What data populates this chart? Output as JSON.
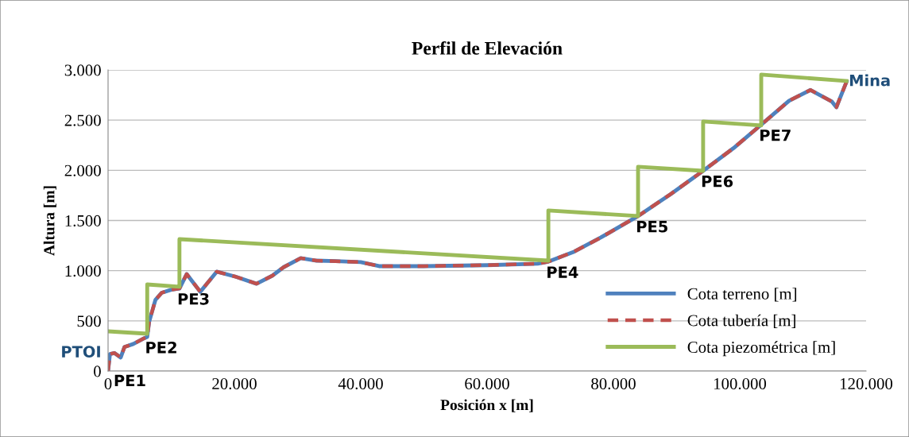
{
  "chart_data": {
    "type": "line",
    "title": "Perfil de Elevación",
    "xlabel": "Posición x [m]",
    "ylabel": "Altura [m]",
    "xlim": [
      0,
      120000
    ],
    "ylim": [
      0,
      3000
    ],
    "xticks": [
      0,
      {
        "value": 20000,
        "label": "20.000"
      },
      {
        "value": 40000,
        "label": "40.000"
      },
      {
        "value": 60000,
        "label": "60.000"
      },
      {
        "value": 80000,
        "label": "80.000"
      },
      {
        "value": 100000,
        "label": "100.000"
      },
      {
        "value": 120000,
        "label": "120.000"
      }
    ],
    "yticks": [
      0,
      500,
      {
        "value": 1000,
        "label": "1.000"
      },
      {
        "value": 1500,
        "label": "1.500"
      },
      {
        "value": 2000,
        "label": "2.000"
      },
      {
        "value": 2500,
        "label": "2.500"
      },
      {
        "value": 3000,
        "label": "3.000"
      }
    ],
    "grid": "y",
    "legend": "bottom right",
    "series": [
      {
        "name": "Cota terreno [m]",
        "color": "#4f81bd",
        "line_style": "solid",
        "x": [
          0,
          300,
          1000,
          2000,
          2600,
          4000,
          5500,
          6200,
          6500,
          7500,
          8500,
          10000,
          11300,
          12450,
          14600,
          17200,
          20200,
          23500,
          26000,
          27800,
          30500,
          33000,
          36000,
          40000,
          42900,
          50000,
          60000,
          68000,
          69700,
          73800,
          78000,
          83900,
          89000,
          94200,
          99000,
          103400,
          107800,
          111200,
          114600,
          115300,
          115800,
          116900
        ],
        "values": [
          0,
          170,
          180,
          135,
          240,
          270,
          320,
          340,
          490,
          710,
          780,
          810,
          823,
          966,
          790,
          990,
          940,
          870,
          950,
          1035,
          1125,
          1100,
          1095,
          1085,
          1045,
          1045,
          1055,
          1070,
          1090,
          1190,
          1330,
          1544,
          1760,
          1995,
          2220,
          2454,
          2692,
          2800,
          2684,
          2628,
          2708,
          2882
        ]
      },
      {
        "name": "Cota tubería [m]",
        "color": "#c0504d",
        "line_style": "dashed",
        "x": [
          0,
          300,
          1000,
          2000,
          2600,
          4000,
          5500,
          6200,
          6500,
          7500,
          8500,
          10000,
          11300,
          12450,
          14600,
          17200,
          20200,
          23500,
          26000,
          27800,
          30500,
          33000,
          36000,
          40000,
          42900,
          50000,
          60000,
          68000,
          69700,
          73800,
          78000,
          83900,
          89000,
          94200,
          99000,
          103400,
          107800,
          111200,
          114600,
          115300,
          115800,
          116900
        ],
        "values": [
          0,
          170,
          180,
          135,
          240,
          270,
          320,
          340,
          490,
          710,
          780,
          810,
          823,
          966,
          790,
          990,
          940,
          870,
          950,
          1035,
          1125,
          1100,
          1095,
          1085,
          1045,
          1045,
          1055,
          1070,
          1090,
          1190,
          1330,
          1544,
          1760,
          1995,
          2220,
          2454,
          2692,
          2800,
          2684,
          2628,
          2708,
          2882
        ]
      },
      {
        "name": "Cota piezométrica [m]",
        "color": "#9bbb59",
        "line_style": "solid",
        "x": [
          0,
          6200,
          6200,
          11300,
          11300,
          69700,
          69700,
          83900,
          83900,
          94200,
          94200,
          103400,
          103400,
          116900
        ],
        "values": [
          396,
          372,
          863,
          840,
          1314,
          1100,
          1600,
          1544,
          2035,
          1995,
          2486,
          2447,
          2953,
          2890
        ]
      }
    ],
    "annotations": [
      {
        "text": "PTOI",
        "x": 0,
        "y": 180
      },
      {
        "text": "PE1",
        "x": 0,
        "y": 0
      },
      {
        "text": "PE2",
        "x": 6200,
        "y": 340
      },
      {
        "text": "PE3",
        "x": 11300,
        "y": 823
      },
      {
        "text": "PE4",
        "x": 69700,
        "y": 1090
      },
      {
        "text": "PE5",
        "x": 83900,
        "y": 1544
      },
      {
        "text": "PE6",
        "x": 94200,
        "y": 1995
      },
      {
        "text": "PE7",
        "x": 103400,
        "y": 2454
      },
      {
        "text": "Mina",
        "x": 116900,
        "y": 2882
      }
    ]
  }
}
